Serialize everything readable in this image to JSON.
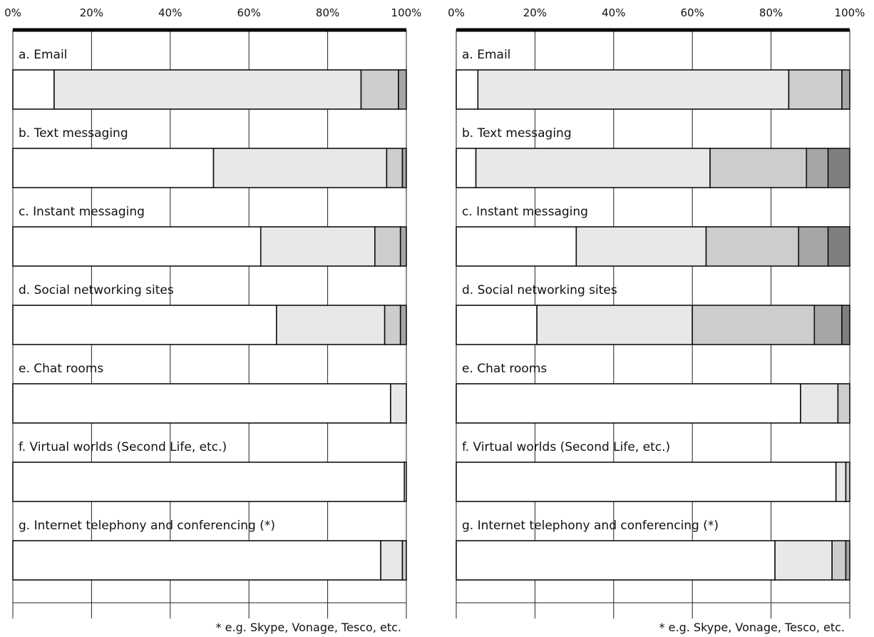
{
  "chart_data": [
    {
      "type": "bar",
      "orientation": "horizontal",
      "stacked": true,
      "percent_stacked": true,
      "title": "",
      "xlabel": "",
      "ylabel": "",
      "xlim": [
        0,
        100
      ],
      "xticks": [
        "0%",
        "20%",
        "40%",
        "60%",
        "80%",
        "100%"
      ],
      "grid": true,
      "legend": "none",
      "categories": [
        "a. Email",
        "b. Text messaging",
        "c. Instant messaging",
        "d. Social networking sites",
        "e. Chat rooms",
        "f. Virtual worlds (Second Life, etc.)",
        "g. Internet telephony and conferencing (*)"
      ],
      "segment_colors": [
        "#ffffff",
        "#e8e8e8",
        "#cdcdcd",
        "#a6a6a6",
        "#7f7f7f"
      ],
      "segments": [
        [
          10.5,
          78,
          9.5,
          2,
          0
        ],
        [
          51,
          44,
          4,
          1,
          0
        ],
        [
          63,
          29,
          6.5,
          1.5,
          0
        ],
        [
          67,
          27.5,
          4,
          1.5,
          0
        ],
        [
          96,
          4,
          0,
          0,
          0
        ],
        [
          99.5,
          0.5,
          0,
          0,
          0
        ],
        [
          93.5,
          5.5,
          1,
          0,
          0
        ]
      ],
      "footnote": "* e.g. Skype, Vonage, Tesco, etc."
    },
    {
      "type": "bar",
      "orientation": "horizontal",
      "stacked": true,
      "percent_stacked": true,
      "title": "",
      "xlabel": "",
      "ylabel": "",
      "xlim": [
        0,
        100
      ],
      "xticks": [
        "0%",
        "20%",
        "40%",
        "60%",
        "80%",
        "100%"
      ],
      "grid": true,
      "legend": "none",
      "categories": [
        "a. Email",
        "b. Text messaging",
        "c. Instant messaging",
        "d. Social networking sites",
        "e. Chat rooms",
        "f. Virtual worlds (Second Life, etc.)",
        "g. Internet telephony and conferencing (*)"
      ],
      "segment_colors": [
        "#ffffff",
        "#e8e8e8",
        "#cdcdcd",
        "#a6a6a6",
        "#7f7f7f"
      ],
      "segments": [
        [
          5.5,
          79,
          13.5,
          2,
          0
        ],
        [
          5,
          59.5,
          24.5,
          5.5,
          5.5
        ],
        [
          30.5,
          33,
          23.5,
          7.5,
          5.5
        ],
        [
          20.5,
          39.5,
          31,
          7,
          2
        ],
        [
          87.5,
          9.5,
          3,
          0,
          0
        ],
        [
          96.5,
          2.5,
          1,
          0,
          0
        ],
        [
          81,
          14.5,
          3.5,
          1,
          0
        ]
      ],
      "footnote": "* e.g. Skype, Vonage, Tesco, etc."
    }
  ]
}
